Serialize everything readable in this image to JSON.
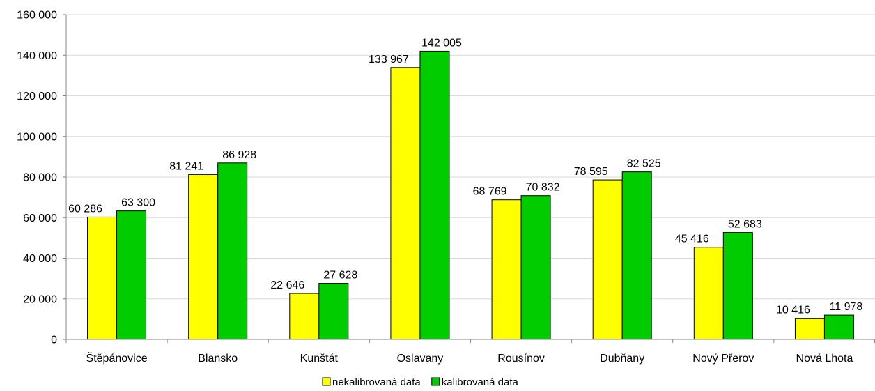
{
  "chart_data": {
    "type": "bar",
    "categories": [
      "Štěpánovice",
      "Blansko",
      "Kunštát",
      "Oslavany",
      "Rousínov",
      "Dubňany",
      "Nový Přerov",
      "Nová Lhota"
    ],
    "series": [
      {
        "name": "nekalibrovaná data",
        "color": "#ffff00",
        "values": [
          60286,
          81241,
          22646,
          133967,
          68769,
          78595,
          45416,
          10416
        ],
        "labels": [
          "60 286",
          "81 241",
          "22 646",
          "133 967",
          "68 769",
          "78 595",
          "45 416",
          "10 416"
        ]
      },
      {
        "name": "kalibrovaná data",
        "color": "#00cc00",
        "values": [
          63300,
          86928,
          27628,
          142005,
          70832,
          82525,
          52683,
          11978
        ],
        "labels": [
          "63 300",
          "86 928",
          "27 628",
          "142 005",
          "70 832",
          "82 525",
          "52 683",
          "11 978"
        ]
      }
    ],
    "ylim": [
      0,
      160000
    ],
    "yticks": [
      0,
      20000,
      40000,
      60000,
      80000,
      100000,
      120000,
      140000,
      160000
    ],
    "ytick_labels": [
      "0",
      "20 000",
      "40 000",
      "60 000",
      "80 000",
      "100 000",
      "120 000",
      "140 000",
      "160 000"
    ],
    "grid": true,
    "legend_position": "bottom",
    "title": "",
    "xlabel": "",
    "ylabel": ""
  }
}
